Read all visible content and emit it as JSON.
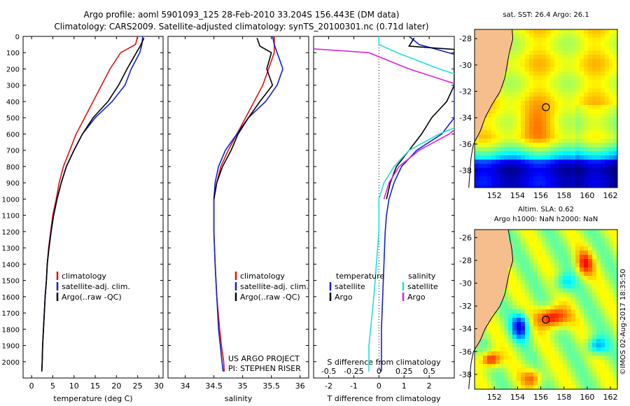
{
  "header": {
    "line1": "Argo profile: aoml 5901093_125 28-Feb-2010 33.204S 156.443E (DM data)",
    "line2": "Climatology: CARS2009. Satellite-adjusted climatology: synTS_20100301.nc (0.71d later)"
  },
  "colors": {
    "clim": "#dd1111",
    "sat": "#1122cc",
    "argo": "#000000",
    "cyan": "#22dddd",
    "magenta": "#dd22dd",
    "land": "#f5be8c"
  },
  "chart_data": [
    {
      "type": "line",
      "xlabel": "temperature (deg C)",
      "ylabel": "",
      "xlim": [
        -2,
        31
      ],
      "ylim": [
        2100,
        0
      ],
      "xticks": [
        "0",
        "5",
        "10",
        "15",
        "20",
        "25",
        "30"
      ],
      "yticks": [
        "0",
        "100",
        "200",
        "300",
        "400",
        "500",
        "600",
        "700",
        "800",
        "900",
        "1000",
        "1100",
        "1200",
        "1300",
        "1400",
        "1500",
        "1600",
        "1700",
        "1800",
        "1900",
        "2000"
      ],
      "legend": [
        "climatology",
        "satellite-adj. clim.",
        "Argo(..raw -QC)"
      ],
      "series": [
        {
          "name": "climatology",
          "color": "clim",
          "points": [
            [
              25,
              0
            ],
            [
              24.5,
              50
            ],
            [
              21,
              100
            ],
            [
              18.5,
              200
            ],
            [
              16.5,
              300
            ],
            [
              14.5,
              400
            ],
            [
              12.5,
              500
            ],
            [
              10.5,
              600
            ],
            [
              9,
              700
            ],
            [
              7.5,
              800
            ],
            [
              6.5,
              900
            ],
            [
              5.8,
              1000
            ],
            [
              5,
              1100
            ],
            [
              4.5,
              1200
            ],
            [
              4,
              1300
            ],
            [
              3.7,
              1400
            ],
            [
              3.5,
              1500
            ],
            [
              3.2,
              1600
            ],
            [
              3,
              1700
            ],
            [
              2.8,
              1800
            ],
            [
              2.6,
              1900
            ],
            [
              2.5,
              2000
            ],
            [
              2.4,
              2060
            ]
          ]
        },
        {
          "name": "satellite-adj. clim.",
          "color": "sat",
          "points": [
            [
              26.2,
              0
            ],
            [
              26,
              50
            ],
            [
              25.5,
              100
            ],
            [
              23.5,
              200
            ],
            [
              22,
              300
            ],
            [
              19,
              400
            ],
            [
              15,
              500
            ],
            [
              12,
              600
            ],
            [
              10,
              700
            ],
            [
              8.2,
              800
            ],
            [
              7,
              900
            ],
            [
              6,
              1000
            ],
            [
              5.2,
              1100
            ],
            [
              4.6,
              1200
            ],
            [
              4.1,
              1300
            ],
            [
              3.7,
              1400
            ],
            [
              3.5,
              1500
            ],
            [
              3.2,
              1600
            ],
            [
              3,
              1700
            ],
            [
              2.8,
              1800
            ],
            [
              2.6,
              1900
            ],
            [
              2.5,
              2000
            ],
            [
              2.4,
              2060
            ]
          ]
        },
        {
          "name": "Argo(..raw -QC)",
          "color": "argo",
          "points": [
            [
              26.5,
              10
            ],
            [
              25.6,
              60
            ],
            [
              24.7,
              100
            ],
            [
              22.5,
              200
            ],
            [
              20.5,
              300
            ],
            [
              18,
              400
            ],
            [
              14.5,
              500
            ],
            [
              12,
              600
            ],
            [
              10,
              700
            ],
            [
              8.2,
              800
            ],
            [
              7,
              900
            ],
            [
              6,
              1000
            ],
            [
              5.2,
              1100
            ],
            [
              4.6,
              1200
            ],
            [
              4.1,
              1300
            ],
            [
              3.7,
              1400
            ],
            [
              3.5,
              1500
            ],
            [
              3.2,
              1600
            ],
            [
              3,
              1700
            ],
            [
              2.8,
              1800
            ],
            [
              2.6,
              1900
            ],
            [
              2.5,
              2000
            ],
            [
              2.4,
              2060
            ]
          ]
        }
      ]
    },
    {
      "type": "line",
      "xlabel": "salinity",
      "xlim": [
        33.7,
        36.15
      ],
      "ylim": [
        2100,
        0
      ],
      "xticks": [
        "34",
        "34.5",
        "35",
        "35.5",
        "36"
      ],
      "legend": [
        "climatology",
        "satellite-adj. clim.",
        "Argo(..raw -QC)"
      ],
      "annotations": [
        "US ARGO PROJECT",
        "PI: STEPHEN RISER"
      ],
      "series": [
        {
          "name": "climatology",
          "color": "clim",
          "points": [
            [
              35.55,
              0
            ],
            [
              35.55,
              100
            ],
            [
              35.45,
              200
            ],
            [
              35.35,
              300
            ],
            [
              35.2,
              400
            ],
            [
              35.05,
              500
            ],
            [
              34.9,
              600
            ],
            [
              34.75,
              700
            ],
            [
              34.62,
              800
            ],
            [
              34.55,
              900
            ],
            [
              34.5,
              1000
            ],
            [
              34.5,
              1100
            ],
            [
              34.5,
              1200
            ],
            [
              34.52,
              1400
            ],
            [
              34.55,
              1600
            ],
            [
              34.6,
              1800
            ],
            [
              34.63,
              1900
            ],
            [
              34.67,
              2000
            ],
            [
              34.68,
              2060
            ]
          ]
        },
        {
          "name": "satellite-adj. clim.",
          "color": "sat",
          "points": [
            [
              35.52,
              0
            ],
            [
              35.55,
              50
            ],
            [
              35.6,
              100
            ],
            [
              35.7,
              200
            ],
            [
              35.6,
              300
            ],
            [
              35.4,
              400
            ],
            [
              35.1,
              500
            ],
            [
              34.9,
              600
            ],
            [
              34.7,
              700
            ],
            [
              34.58,
              800
            ],
            [
              34.52,
              900
            ],
            [
              34.5,
              1000
            ],
            [
              34.5,
              1100
            ],
            [
              34.5,
              1200
            ],
            [
              34.52,
              1400
            ],
            [
              34.55,
              1600
            ],
            [
              34.58,
              1800
            ],
            [
              34.61,
              1900
            ],
            [
              34.64,
              2000
            ],
            [
              34.66,
              2060
            ]
          ]
        },
        {
          "name": "Argo(..raw -QC)",
          "color": "argo",
          "points": [
            [
              35.25,
              10
            ],
            [
              35.3,
              60
            ],
            [
              35.5,
              100
            ],
            [
              35.42,
              200
            ],
            [
              35.52,
              300
            ],
            [
              35.3,
              400
            ],
            [
              35.1,
              500
            ],
            [
              34.92,
              600
            ],
            [
              34.8,
              700
            ],
            [
              34.65,
              800
            ],
            [
              34.55,
              900
            ],
            [
              34.5,
              1000
            ]
          ]
        }
      ]
    },
    {
      "type": "line",
      "xlabel": "T difference from climatology",
      "xlabel_top": "S difference from climatology",
      "xlim": [
        -2.6,
        3.0
      ],
      "ylim": [
        2100,
        0
      ],
      "xticks": [
        "-2",
        "-1",
        "0",
        "1",
        "2"
      ],
      "xticks_top": [
        "-0.5",
        "-0.25",
        "0",
        "0.25",
        "0.5"
      ],
      "legend_left": [
        "temperature",
        "satellite",
        "Argo"
      ],
      "legend_right": [
        "salinity",
        "satellite",
        "Argo"
      ],
      "series": [
        {
          "name": "T satellite",
          "color": "sat",
          "points": [
            [
              1.2,
              0
            ],
            [
              1.6,
              50
            ],
            [
              3.0,
              110
            ],
            [
              3.0,
              400
            ],
            [
              3.0,
              500
            ],
            [
              2.5,
              600
            ],
            [
              1.5,
              700
            ],
            [
              0.9,
              800
            ],
            [
              0.6,
              900
            ],
            [
              0.4,
              1000
            ],
            [
              0.3,
              1100
            ],
            [
              0.25,
              1200
            ],
            [
              0.2,
              1400
            ],
            [
              0.15,
              1600
            ],
            [
              0.1,
              1800
            ],
            [
              0.1,
              2060
            ]
          ]
        },
        {
          "name": "T Argo",
          "color": "argo",
          "points": [
            [
              1.4,
              10
            ],
            [
              1.2,
              60
            ],
            [
              3.0,
              80
            ],
            [
              3.0,
              300
            ],
            [
              2.7,
              400
            ],
            [
              2.1,
              500
            ],
            [
              1.7,
              600
            ],
            [
              1.2,
              700
            ],
            [
              0.7,
              800
            ],
            [
              0.45,
              900
            ],
            [
              0.3,
              1000
            ]
          ]
        },
        {
          "name": "S satellite",
          "color": "cyan",
          "points": [
            [
              0.0,
              0
            ],
            [
              0.0,
              50
            ],
            [
              0.18,
              100
            ],
            [
              0.6,
              200
            ],
            [
              1.1,
              300
            ],
            [
              1.2,
              400
            ],
            [
              1.0,
              500
            ],
            [
              0.6,
              600
            ],
            [
              0.3,
              700
            ],
            [
              0.15,
              800
            ],
            [
              0.05,
              900
            ],
            [
              0.0,
              1000
            ],
            [
              0.0,
              1200
            ],
            [
              -0.05,
              1600
            ],
            [
              -0.1,
              1900
            ],
            [
              -0.1,
              2060
            ]
          ]
        },
        {
          "name": "S Argo",
          "color": "magenta",
          "points": [
            [
              -0.7,
              10
            ],
            [
              -1.05,
              60
            ],
            [
              -0.1,
              100
            ],
            [
              0.3,
              200
            ],
            [
              0.8,
              300
            ],
            [
              1.0,
              400
            ],
            [
              0.9,
              500
            ],
            [
              0.7,
              600
            ],
            [
              0.4,
              700
            ],
            [
              0.2,
              800
            ],
            [
              0.1,
              900
            ],
            [
              0.05,
              1000
            ]
          ]
        }
      ]
    },
    {
      "type": "heatmap",
      "title": "sat. SST: 26.4  Argo: 26.1",
      "xlim": [
        150.3,
        162.6
      ],
      "ylim": [
        -39.3,
        -27.3
      ],
      "xticks": [
        "152",
        "154",
        "156",
        "158",
        "160",
        "162"
      ],
      "yticks": [
        "-28",
        "-30",
        "-32",
        "-34",
        "-36",
        "-38"
      ],
      "marker": [
        156.44,
        -33.2
      ]
    },
    {
      "type": "heatmap",
      "title": "Altim. SLA: 0.62",
      "subtitle": "Argo h1000: NaN h2000: NaN",
      "xlim": [
        150.3,
        162.6
      ],
      "ylim": [
        -39.3,
        -25.3
      ],
      "xticks": [
        "152",
        "154",
        "156",
        "158",
        "160",
        "162"
      ],
      "yticks": [
        "-26",
        "-28",
        "-30",
        "-32",
        "-34",
        "-36",
        "-38"
      ],
      "marker": [
        156.44,
        -33.2
      ],
      "side_label": "©IMOS 02-Aug-2017 18:35:50"
    }
  ]
}
